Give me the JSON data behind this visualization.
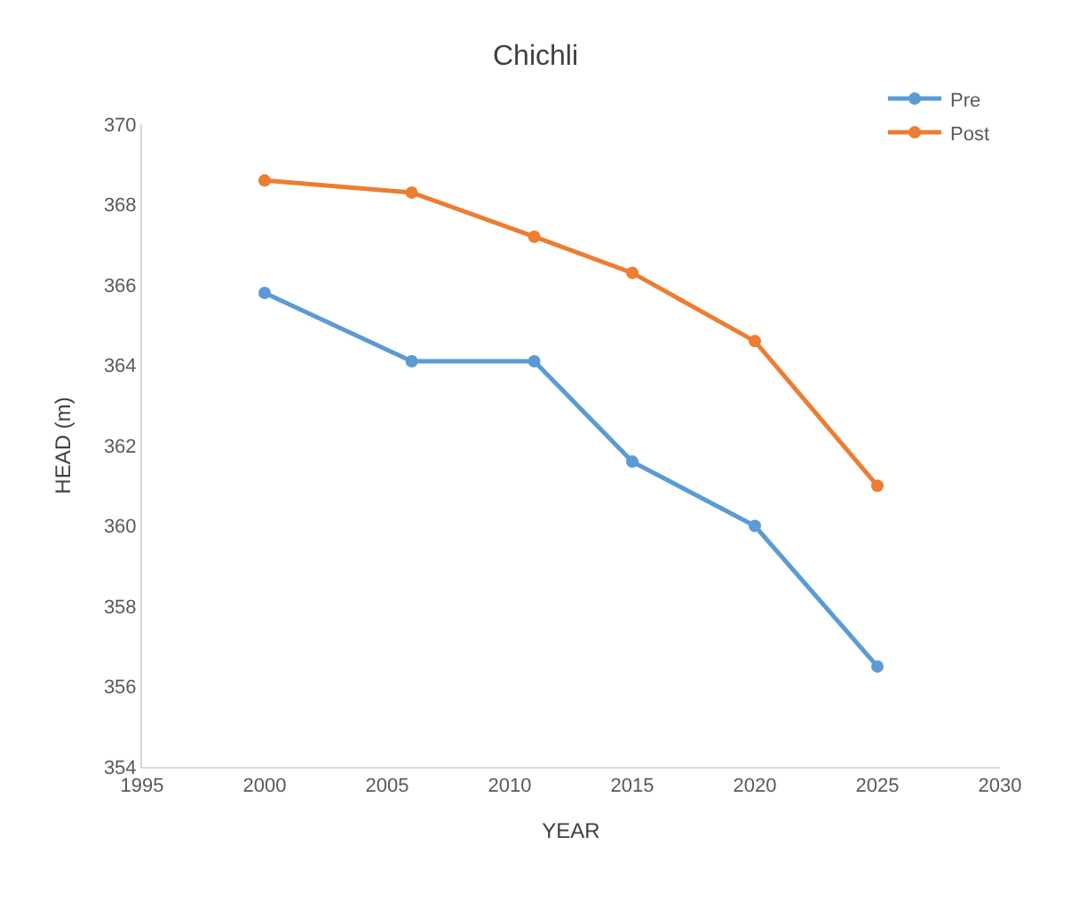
{
  "chart_data": {
    "type": "line",
    "title": "Chichli",
    "xlabel": "YEAR",
    "ylabel": "HEAD (m)",
    "x": [
      2000,
      2006,
      2011,
      2015,
      2020,
      2025
    ],
    "series": [
      {
        "name": "Pre",
        "color": "#5b9bd5",
        "values": [
          365.8,
          364.1,
          364.1,
          361.6,
          360.0,
          356.5
        ]
      },
      {
        "name": "Post",
        "color": "#ed7d31",
        "values": [
          368.6,
          368.3,
          367.2,
          366.3,
          364.6,
          361.0
        ]
      }
    ],
    "xlim": [
      1995,
      2030
    ],
    "xticks": [
      1995,
      2000,
      2005,
      2010,
      2015,
      2020,
      2025,
      2030
    ],
    "ylim": [
      354,
      370
    ],
    "yticks": [
      354,
      356,
      358,
      360,
      362,
      364,
      366,
      368,
      370
    ],
    "grid": false,
    "legend": "top right",
    "marker": "circle",
    "line_style": "solid"
  }
}
